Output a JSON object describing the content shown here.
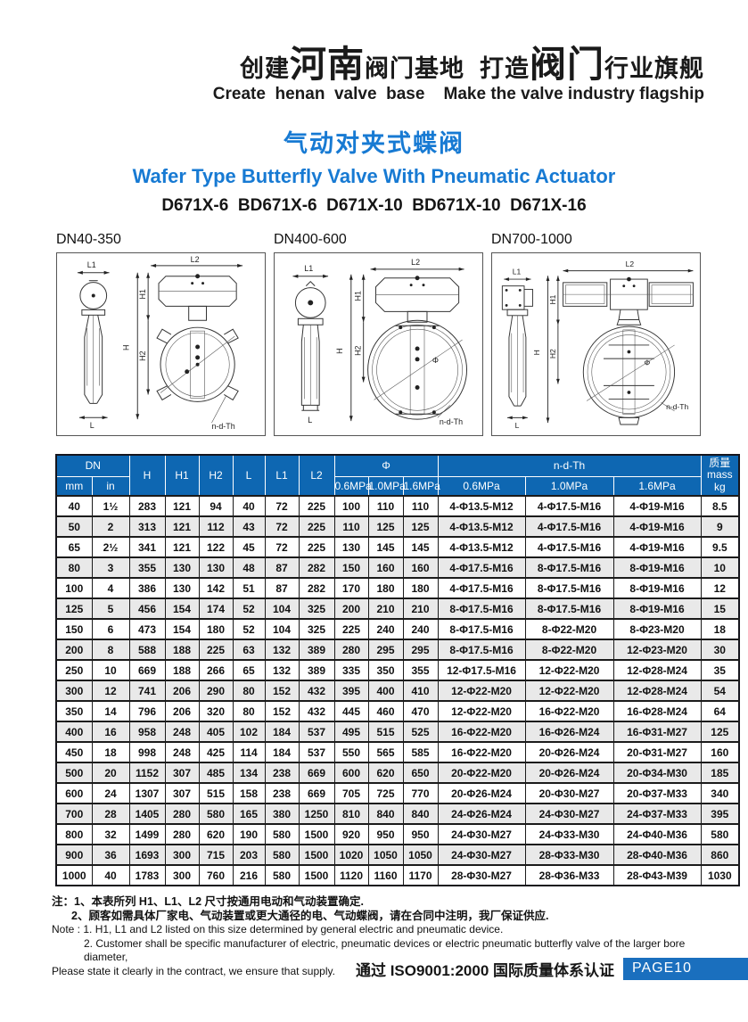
{
  "header": {
    "slogan_cn": [
      "创建",
      "河南",
      "阀门基地",
      "  打造",
      "阀门",
      "行业旗舰"
    ],
    "slogan_en": "Create  henan  valve  base    Make the valve industry flagship"
  },
  "title": {
    "cn": "气动对夹式蝶阀",
    "en": "Wafer Type Butterfly Valve With Pneumatic Actuator",
    "models": "D671X-6  BD671X-6  D671X-10  BD671X-10  D671X-16",
    "accent_color": "#177ad3"
  },
  "drawings": [
    {
      "label": "DN40-350",
      "dim_labels": {
        "l1": "L1",
        "l2": "L2",
        "h": "H",
        "h1": "H1",
        "h2": "H2",
        "l": "L",
        "ndth": "n-d-Th"
      }
    },
    {
      "label": "DN400-600",
      "dim_labels": {
        "l1": "L1",
        "l2": "L2",
        "h": "H",
        "h1": "H1",
        "h2": "H2",
        "l": "L",
        "phi": "Φ",
        "ndth": "n-d-Th"
      }
    },
    {
      "label": "DN700-1000",
      "dim_labels": {
        "l1": "L1",
        "l2": "L2",
        "h": "H",
        "h1": "H1",
        "h2": "H2",
        "l": "L",
        "phi": "Φ",
        "ndth": "n-d-Th"
      }
    }
  ],
  "table": {
    "header_color": "#0e67b2",
    "header": {
      "dn": "DN",
      "mm": "mm",
      "in": "in",
      "h": "H",
      "h1": "H1",
      "h2": "H2",
      "l": "L",
      "l1": "L1",
      "l2": "L2",
      "phi": "Φ",
      "ndth": "n-d-Th",
      "pressures": [
        "0.6MPa",
        "1.0MPa",
        "1.6MPa"
      ],
      "mass_cn": "质量",
      "mass_en": "mass",
      "mass_unit": "kg"
    },
    "rows": [
      [
        "40",
        "1½",
        "283",
        "121",
        "94",
        "40",
        "72",
        "225",
        "100",
        "110",
        "110",
        "4-Φ13.5-M12",
        "4-Φ17.5-M16",
        "4-Φ19-M16",
        "8.5"
      ],
      [
        "50",
        "2",
        "313",
        "121",
        "112",
        "43",
        "72",
        "225",
        "110",
        "125",
        "125",
        "4-Φ13.5-M12",
        "4-Φ17.5-M16",
        "4-Φ19-M16",
        "9"
      ],
      [
        "65",
        "2½",
        "341",
        "121",
        "122",
        "45",
        "72",
        "225",
        "130",
        "145",
        "145",
        "4-Φ13.5-M12",
        "4-Φ17.5-M16",
        "4-Φ19-M16",
        "9.5"
      ],
      [
        "80",
        "3",
        "355",
        "130",
        "130",
        "48",
        "87",
        "282",
        "150",
        "160",
        "160",
        "4-Φ17.5-M16",
        "8-Φ17.5-M16",
        "8-Φ19-M16",
        "10"
      ],
      [
        "100",
        "4",
        "386",
        "130",
        "142",
        "51",
        "87",
        "282",
        "170",
        "180",
        "180",
        "4-Φ17.5-M16",
        "8-Φ17.5-M16",
        "8-Φ19-M16",
        "12"
      ],
      [
        "125",
        "5",
        "456",
        "154",
        "174",
        "52",
        "104",
        "325",
        "200",
        "210",
        "210",
        "8-Φ17.5-M16",
        "8-Φ17.5-M16",
        "8-Φ19-M16",
        "15"
      ],
      [
        "150",
        "6",
        "473",
        "154",
        "180",
        "52",
        "104",
        "325",
        "225",
        "240",
        "240",
        "8-Φ17.5-M16",
        "8-Φ22-M20",
        "8-Φ23-M20",
        "18"
      ],
      [
        "200",
        "8",
        "588",
        "188",
        "225",
        "63",
        "132",
        "389",
        "280",
        "295",
        "295",
        "8-Φ17.5-M16",
        "8-Φ22-M20",
        "12-Φ23-M20",
        "30"
      ],
      [
        "250",
        "10",
        "669",
        "188",
        "266",
        "65",
        "132",
        "389",
        "335",
        "350",
        "355",
        "12-Φ17.5-M16",
        "12-Φ22-M20",
        "12-Φ28-M24",
        "35"
      ],
      [
        "300",
        "12",
        "741",
        "206",
        "290",
        "80",
        "152",
        "432",
        "395",
        "400",
        "410",
        "12-Φ22-M20",
        "12-Φ22-M20",
        "12-Φ28-M24",
        "54"
      ],
      [
        "350",
        "14",
        "796",
        "206",
        "320",
        "80",
        "152",
        "432",
        "445",
        "460",
        "470",
        "12-Φ22-M20",
        "16-Φ22-M20",
        "16-Φ28-M24",
        "64"
      ],
      [
        "400",
        "16",
        "958",
        "248",
        "405",
        "102",
        "184",
        "537",
        "495",
        "515",
        "525",
        "16-Φ22-M20",
        "16-Φ26-M24",
        "16-Φ31-M27",
        "125"
      ],
      [
        "450",
        "18",
        "998",
        "248",
        "425",
        "114",
        "184",
        "537",
        "550",
        "565",
        "585",
        "16-Φ22-M20",
        "20-Φ26-M24",
        "20-Φ31-M27",
        "160"
      ],
      [
        "500",
        "20",
        "1152",
        "307",
        "485",
        "134",
        "238",
        "669",
        "600",
        "620",
        "650",
        "20-Φ22-M20",
        "20-Φ26-M24",
        "20-Φ34-M30",
        "185"
      ],
      [
        "600",
        "24",
        "1307",
        "307",
        "515",
        "158",
        "238",
        "669",
        "705",
        "725",
        "770",
        "20-Φ26-M24",
        "20-Φ30-M27",
        "20-Φ37-M33",
        "340"
      ],
      [
        "700",
        "28",
        "1405",
        "280",
        "580",
        "165",
        "380",
        "1250",
        "810",
        "840",
        "840",
        "24-Φ26-M24",
        "24-Φ30-M27",
        "24-Φ37-M33",
        "395"
      ],
      [
        "800",
        "32",
        "1499",
        "280",
        "620",
        "190",
        "580",
        "1500",
        "920",
        "950",
        "950",
        "24-Φ30-M27",
        "24-Φ33-M30",
        "24-Φ40-M36",
        "580"
      ],
      [
        "900",
        "36",
        "1693",
        "300",
        "715",
        "203",
        "580",
        "1500",
        "1020",
        "1050",
        "1050",
        "24-Φ30-M27",
        "28-Φ33-M30",
        "28-Φ40-M36",
        "860"
      ],
      [
        "1000",
        "40",
        "1783",
        "300",
        "760",
        "216",
        "580",
        "1500",
        "1120",
        "1160",
        "1170",
        "28-Φ30-M27",
        "28-Φ36-M33",
        "28-Φ43-M39",
        "1030"
      ]
    ]
  },
  "notes": {
    "cn1": "注：1、本表所列 H1、L1、L2 尺寸按通用电动和气动装置确定.",
    "cn2": "2、顾客如需具体厂家电、气动装置或更大通径的电、气动蝶阀，请在合同中注明，我厂保证供应.",
    "en1": "Note : 1. H1, L1 and L2 listed on this size determined by general electric and pneumatic device.",
    "en2": "2. Customer shall be specific manufacturer of electric, pneumatic devices or electric pneumatic butterfly valve of the larger bore diameter,",
    "en3": "Please state it clearly in the contract, we ensure that supply."
  },
  "footer": {
    "iso": "通过 ISO9001:2000 国际质量体系认证",
    "page": "PAGE10",
    "badge_color": "#1a6fbe"
  }
}
